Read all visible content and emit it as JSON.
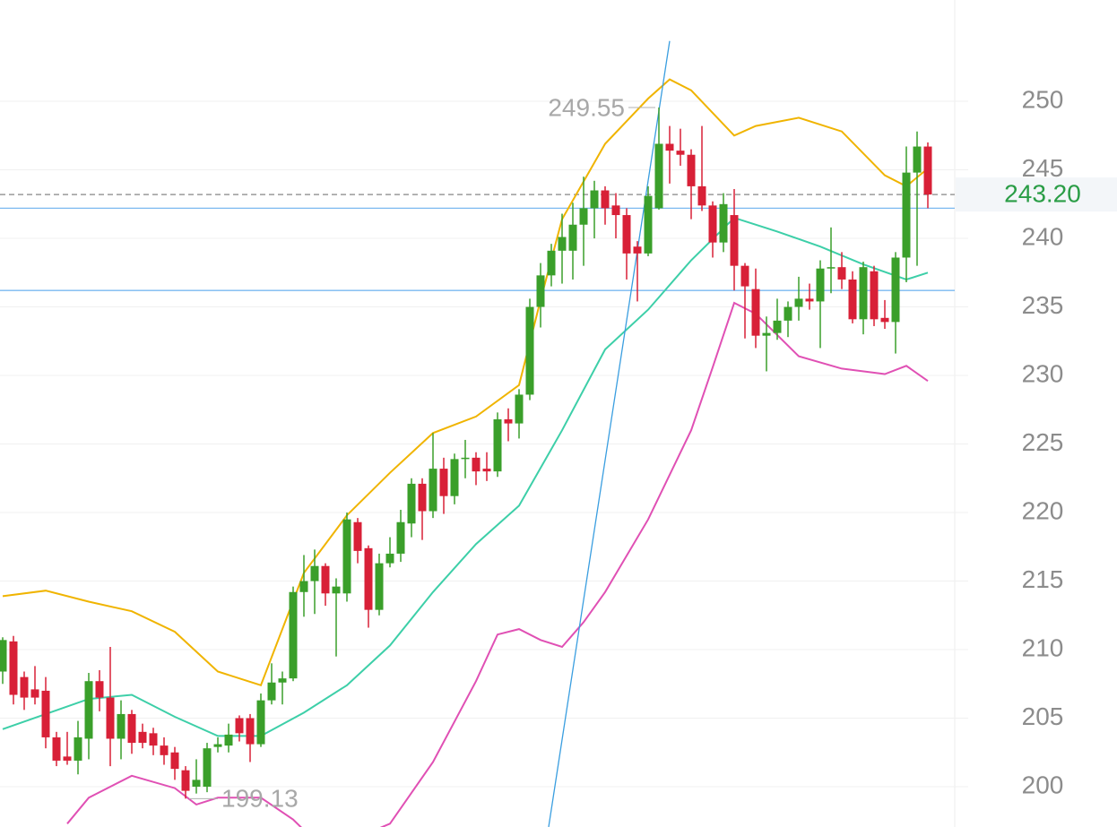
{
  "chart_data": {
    "type": "candlestick",
    "open": [
      208.4,
      210.6,
      208,
      207.1,
      207,
      203.6,
      202.2,
      201.9,
      203.5,
      207.7,
      206.5,
      203.5,
      205.3,
      204,
      203.9,
      203,
      202.5,
      201.2,
      200,
      200,
      202.9,
      203,
      205,
      205,
      203.1,
      206.3,
      207.6,
      207.9,
      214.2,
      215,
      216.1,
      214.1,
      214.1,
      219.3,
      217.4,
      212.9,
      216.3,
      217,
      219.2,
      222.1,
      220.1,
      223.2,
      221.2,
      223.9,
      224,
      223.2,
      223,
      226.8,
      226.5,
      228.6,
      235,
      237.3,
      239.1,
      239.1,
      241,
      242.2,
      243.5,
      242.4,
      241.7,
      239.4,
      238.9,
      242.2,
      246.9,
      246.4,
      246.1,
      243.8,
      242.4,
      239.7,
      241.7,
      238,
      236.3,
      232.9,
      233.1,
      234,
      235,
      235.6,
      235.4,
      237.8,
      237.9,
      237,
      234.1,
      237.6,
      234.2,
      233.9,
      238.6,
      244.8,
      246.7
    ],
    "high": [
      210.9,
      211,
      208.4,
      208.8,
      208,
      204,
      204,
      204.8,
      208.3,
      208.5,
      210.2,
      206.3,
      205.6,
      204.6,
      204.3,
      203.6,
      202.9,
      201.5,
      202,
      203.2,
      203.6,
      204.6,
      205.2,
      205.3,
      206.8,
      209,
      208.4,
      214.6,
      216.9,
      217.3,
      216.3,
      215.2,
      220,
      219.6,
      217.6,
      217,
      218.2,
      220.2,
      222.5,
      222.5,
      225.8,
      224,
      224.3,
      225.3,
      224.4,
      224.4,
      227.3,
      227.6,
      229,
      235.6,
      238.2,
      239.6,
      241.8,
      242.6,
      244.5,
      244.2,
      243.8,
      243.3,
      242.2,
      239.8,
      243.8,
      249.55,
      248.2,
      248,
      246.5,
      248.2,
      242.7,
      243.3,
      243.6,
      238.2,
      237.8,
      234.3,
      235.6,
      235.4,
      237.2,
      236.7,
      238.4,
      240.8,
      239,
      237.6,
      238.3,
      238,
      235.5,
      239,
      246.7,
      247.8,
      247
    ],
    "low": [
      207.5,
      206,
      205.6,
      206,
      202.8,
      201.5,
      201.6,
      200.9,
      202,
      205.5,
      201.5,
      202,
      202.4,
      202.8,
      202.3,
      201.6,
      200.5,
      199.13,
      199.5,
      199.6,
      202.5,
      202.5,
      203.3,
      201.8,
      202.9,
      206,
      206,
      207.7,
      212.4,
      212.6,
      213.2,
      209.5,
      213.5,
      216.3,
      211.6,
      212.5,
      216,
      216.4,
      218.2,
      218,
      219.6,
      219.9,
      220.6,
      222.5,
      222,
      222.3,
      222.6,
      225.2,
      225.4,
      228.2,
      233.5,
      236.5,
      236.7,
      237,
      238,
      240,
      241,
      240,
      237,
      235.4,
      238.7,
      242.1,
      244,
      245.3,
      241.4,
      242,
      238.6,
      239,
      236.2,
      232.7,
      232,
      230.3,
      232.6,
      232.8,
      234,
      234.8,
      232,
      236,
      236.3,
      233.8,
      233,
      233.6,
      233.4,
      231.6,
      236.8,
      238,
      242.2
    ],
    "close": [
      210.7,
      206.7,
      206.5,
      206.5,
      203.6,
      201.9,
      201.9,
      203.6,
      207.7,
      206.5,
      203.5,
      205.3,
      203.2,
      203.2,
      203,
      202.3,
      201.3,
      199.7,
      200.5,
      202.8,
      203.1,
      203.8,
      203.9,
      203.1,
      206.3,
      207.6,
      207.9,
      214.2,
      215,
      216.1,
      214.1,
      214.6,
      219.5,
      217.2,
      212.9,
      216.3,
      217,
      219.3,
      222.1,
      220.1,
      223.2,
      221.2,
      223.9,
      224,
      223,
      223,
      226.8,
      226.5,
      228.6,
      235,
      237.3,
      239.1,
      240.1,
      241,
      242.2,
      243.5,
      242.2,
      241.7,
      238.9,
      238.9,
      243.1,
      246.9,
      246.4,
      246.1,
      243.8,
      242.4,
      239.7,
      242.5,
      238,
      236.5,
      232.9,
      233.1,
      234,
      235,
      235.6,
      235.4,
      237.8,
      237.9,
      237,
      234.1,
      237.9,
      234.1,
      233.9,
      238.6,
      244.8,
      246.7,
      243.2
    ],
    "up_color": "#3a9f2a",
    "down_color": "#d82037",
    "bands": [
      {
        "color": "#f0b400",
        "x": [
          0,
          4,
          8,
          12,
          16,
          20,
          24,
          28,
          32,
          36,
          40,
          44,
          48,
          50,
          52,
          56,
          60,
          62,
          64,
          68,
          70,
          74,
          78,
          82,
          84,
          86
        ],
        "values": [
          213.9,
          214.3,
          213.5,
          212.8,
          211.3,
          208.4,
          207.4,
          215.6,
          219.8,
          222.9,
          225.8,
          227,
          229.3,
          235.5,
          241.4,
          246.9,
          250.2,
          251.6,
          250.8,
          247.5,
          248.2,
          248.8,
          247.8,
          244.6,
          243.8,
          245.1
        ]
      },
      {
        "color": "#3dcfa8",
        "x": [
          0,
          4,
          8,
          12,
          16,
          20,
          24,
          28,
          32,
          36,
          40,
          44,
          48,
          52,
          56,
          60,
          64,
          68,
          72,
          76,
          80,
          84,
          86
        ],
        "values": [
          204.2,
          205.3,
          206.4,
          206.7,
          205.1,
          203.7,
          203.7,
          205.4,
          207.4,
          210.3,
          214.2,
          217.7,
          220.5,
          226,
          231.9,
          234.8,
          238.4,
          241.5,
          240.5,
          239.4,
          238.1,
          237,
          237.5
        ]
      },
      {
        "color": "#e050b4",
        "x": [
          6,
          8,
          12,
          16,
          18,
          20,
          24,
          27,
          30,
          36,
          40,
          44,
          46,
          48,
          50,
          52,
          54,
          56,
          60,
          64,
          66,
          68,
          70,
          74,
          78,
          82,
          84,
          86
        ],
        "values": [
          197.3,
          199.2,
          200.8,
          199.9,
          198.7,
          199.2,
          199.2,
          197.6,
          195.3,
          197.3,
          201.8,
          207.7,
          211.1,
          211.5,
          210.7,
          210.2,
          212,
          214.2,
          219.5,
          226,
          230.6,
          235.3,
          234.5,
          231.4,
          230.5,
          230.1,
          230.7,
          229.6
        ]
      }
    ],
    "trendline": {
      "x": [
        50.75,
        62
      ],
      "y": [
        197.06,
        254.4
      ],
      "color": "#3a9ee0"
    },
    "hlines": [
      242.2,
      236.2
    ],
    "hline_color": "#7ab8f0",
    "last_price": {
      "value": 243.2,
      "label": "243.20"
    },
    "max_label": {
      "value": 249.55,
      "label": "249.55",
      "index": 61
    },
    "min_label": {
      "value": 199.13,
      "label": "199.13",
      "index": 17
    },
    "xlim": [
      -0.25,
      88.5
    ],
    "ylim": [
      197.06,
      257.39
    ],
    "yticks": [
      200,
      205,
      210,
      215,
      220,
      225,
      230,
      235,
      240,
      245,
      250
    ],
    "grid": true
  }
}
